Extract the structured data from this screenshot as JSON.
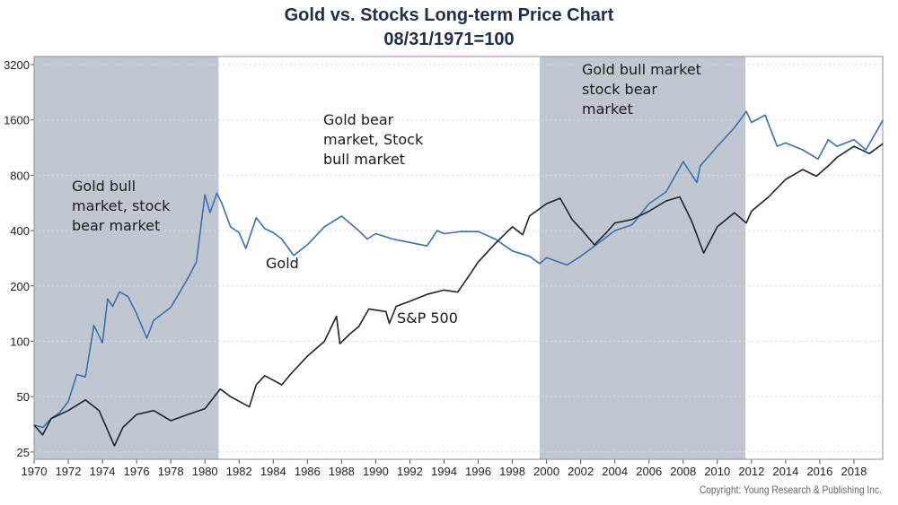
{
  "chart_data": {
    "type": "line",
    "title": "Gold vs. Stocks Long-term Price Chart",
    "subtitle": "08/31/1971=100",
    "xlabel": "",
    "ylabel": "",
    "y_scale": "log2",
    "xlim": [
      1970,
      2019.7
    ],
    "ylim": [
      22,
      3500
    ],
    "x_ticks": [
      "1970",
      "1972",
      "1974",
      "1976",
      "1978",
      "1980",
      "1982",
      "1984",
      "1986",
      "1988",
      "1990",
      "1992",
      "1994",
      "1996",
      "1998",
      "2000",
      "2002",
      "2004",
      "2006",
      "2008",
      "2010",
      "2012",
      "2014",
      "2016",
      "2018"
    ],
    "y_ticks": [
      "25",
      "50",
      "100",
      "200",
      "400",
      "800",
      "1600",
      "3200"
    ],
    "grid": "horizontal dotted",
    "shaded_periods": [
      [
        1970,
        1980.8
      ],
      [
        1999.6,
        2011.65
      ]
    ],
    "colors": {
      "gold": "#3a6fb3",
      "sp500": "#1b2331",
      "shade": "#c1c7d0",
      "title": "#1f2f4a"
    },
    "series": [
      {
        "name": "Gold",
        "x": [
          1970,
          1970.5,
          1971,
          1971.5,
          1972,
          1972.5,
          1973,
          1973.5,
          1974,
          1974.3,
          1974.6,
          1975,
          1975.5,
          1976,
          1976.6,
          1977,
          1978,
          1979,
          1979.5,
          1980,
          1980.3,
          1980.7,
          1981,
          1981.5,
          1982,
          1982.4,
          1983,
          1983.5,
          1984,
          1984.5,
          1985.2,
          1986,
          1987,
          1988,
          1989,
          1989.5,
          1990,
          1991,
          1992,
          1993,
          1993.6,
          1994,
          1995,
          1996,
          1997,
          1998,
          1999,
          1999.6,
          2000,
          2001.2,
          2002,
          2003,
          2004,
          2005,
          2006,
          2007,
          2008,
          2008.8,
          2009,
          2010,
          2011,
          2011.7,
          2012,
          2012.8,
          2013.5,
          2014,
          2015,
          2015.9,
          2016.5,
          2017,
          2018,
          2018.7,
          2019.7
        ],
        "y": [
          35,
          34,
          38,
          41,
          47,
          66,
          64,
          122,
          98,
          170,
          155,
          186,
          175,
          141,
          104,
          130,
          153,
          220,
          270,
          627,
          500,
          640,
          560,
          420,
          390,
          320,
          470,
          410,
          390,
          360,
          293,
          335,
          420,
          480,
          400,
          360,
          385,
          360,
          345,
          330,
          400,
          385,
          395,
          395,
          360,
          310,
          290,
          265,
          285,
          260,
          290,
          340,
          400,
          430,
          560,
          650,
          950,
          730,
          900,
          1150,
          1450,
          1780,
          1550,
          1700,
          1150,
          1200,
          1100,
          980,
          1250,
          1150,
          1250,
          1100,
          1600
        ]
      },
      {
        "name": "S&P 500",
        "x": [
          1970,
          1970.5,
          1971,
          1972,
          1973,
          1973.8,
          1974.7,
          1975.2,
          1976,
          1977,
          1978,
          1979,
          1980,
          1980.9,
          1981.5,
          1982.6,
          1983,
          1983.5,
          1984.5,
          1985,
          1986,
          1987,
          1987.7,
          1987.9,
          1988.5,
          1989,
          1989.6,
          1990.6,
          1990.8,
          1991.2,
          1992,
          1993,
          1994,
          1994.8,
          1995.5,
          1996,
          1997,
          1998,
          1998.6,
          1999,
          2000,
          2000.8,
          2001.5,
          2002,
          2002.8,
          2003.5,
          2004,
          2005,
          2006,
          2007,
          2007.8,
          2008.5,
          2009.2,
          2010,
          2011,
          2011.7,
          2012,
          2013,
          2014,
          2015,
          2015.8,
          2016.5,
          2017,
          2018,
          2018.9,
          2019.7
        ],
        "y": [
          35,
          31,
          38,
          42,
          48,
          42,
          27,
          34,
          40,
          42,
          37,
          40,
          43,
          55,
          50,
          44,
          58,
          65,
          58,
          66,
          83,
          100,
          137,
          97,
          110,
          120,
          150,
          145,
          125,
          155,
          165,
          180,
          190,
          185,
          230,
          270,
          340,
          420,
          380,
          480,
          560,
          600,
          460,
          410,
          335,
          390,
          440,
          460,
          510,
          580,
          610,
          450,
          302,
          420,
          500,
          440,
          510,
          610,
          760,
          860,
          790,
          900,
          1000,
          1150,
          1050,
          1190
        ]
      }
    ],
    "annotations": [
      "Gold bull\nmarket, stock\nbear market",
      "Gold bear\nmarket, Stock\nbull market",
      "Gold bull market\nstock bear\nmarket",
      "Gold",
      "S&P 500"
    ],
    "legend": "none (inline labels)"
  },
  "copyright": "Copyright: Young Research & Publishing Inc."
}
